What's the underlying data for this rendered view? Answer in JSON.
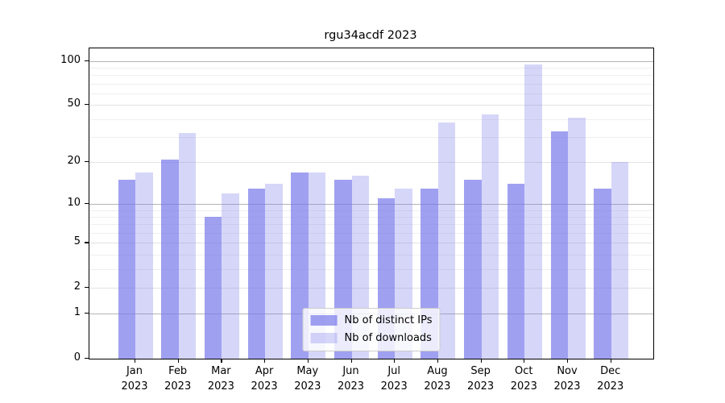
{
  "title": "rgu34acdf 2023",
  "chart_data": {
    "type": "bar",
    "title": "rgu34acdf 2023",
    "categories": [
      "Jan 2023",
      "Feb 2023",
      "Mar 2023",
      "Apr 2023",
      "May 2023",
      "Jun 2023",
      "Jul 2023",
      "Aug 2023",
      "Sep 2023",
      "Oct 2023",
      "Nov 2023",
      "Dec 2023"
    ],
    "series": [
      {
        "name": "Nb of distinct IPs",
        "color": "rgba(120,120,235,0.70)",
        "values": [
          15,
          21,
          8,
          13,
          17,
          15,
          11,
          13,
          15,
          14,
          33,
          13
        ]
      },
      {
        "name": "Nb of downloads",
        "color": "rgba(120,120,235,0.30)",
        "values": [
          17,
          32,
          12,
          14,
          17,
          16,
          13,
          38,
          43,
          95,
          41,
          20
        ]
      }
    ],
    "xlabel": "",
    "ylabel": "",
    "yscale": "log1p",
    "ylim": [
      0,
      122
    ],
    "yticks_labeled": [
      0,
      1,
      2,
      5,
      10,
      20,
      50,
      100
    ],
    "gridlines_major": [
      1,
      10,
      100
    ],
    "gridlines_mid": [
      2,
      5,
      20,
      50
    ],
    "gridlines_minor": [
      3,
      4,
      6,
      7,
      8,
      9,
      30,
      40,
      60,
      70,
      80,
      90
    ],
    "grid": true,
    "legend_position": "lower center",
    "axis_color": "#000000",
    "grid_major_color": "#b5b5b5",
    "grid_minor_color": "#efefef"
  }
}
